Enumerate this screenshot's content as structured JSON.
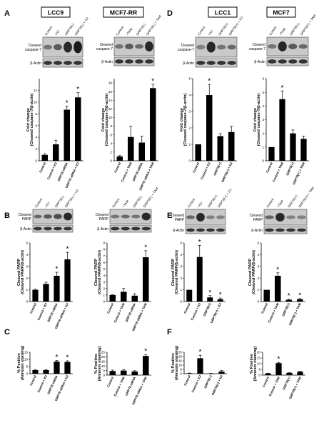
{
  "panel_letters": [
    "A",
    "B",
    "C",
    "D",
    "E",
    "F"
  ],
  "cell_lines": [
    "LCC9",
    "MCF7-RR",
    "LCC1",
    "MCF7"
  ],
  "blot_labels": {
    "caspase": "Cleaved caspase-7",
    "parp": "Cleaved PARP",
    "actin": "β-Actin"
  },
  "chart_data": [
    {
      "id": "A1",
      "type": "bar",
      "panel": "A",
      "cell": "LCC9",
      "ylabel_1": "Fold change",
      "ylabel_2": "(Cleaved caspase-7/β-actin)",
      "categories": [
        "Control",
        "Control + ICI",
        "GRP78 siRNA",
        "GRP78 siRNA + ICI"
      ],
      "values": [
        1.0,
        2.8,
        8.7,
        10.8
      ],
      "errors": [
        0.2,
        0.7,
        0.6,
        0.8
      ],
      "sig": [
        false,
        false,
        true,
        true
      ],
      "yticks": [
        0,
        2,
        4,
        6,
        8,
        10,
        12
      ],
      "ylim": [
        0,
        14
      ]
    },
    {
      "id": "A2",
      "type": "bar",
      "panel": "A",
      "cell": "MCF7-RR",
      "ylabel_1": "Fold change",
      "ylabel_2": "(Cleaved caspase-7/β-actin)",
      "categories": [
        "Control",
        "Control + TAM",
        "GRP78 siRNA",
        "GRP78 siRNA + TAM"
      ],
      "values": [
        1.0,
        5.5,
        4.2,
        16.8
      ],
      "errors": [
        0.2,
        2.5,
        1.5,
        0.9
      ],
      "sig": [
        false,
        false,
        false,
        true
      ],
      "yticks": [
        0,
        2,
        4,
        6,
        8,
        10,
        12,
        14,
        16,
        18
      ],
      "ylim": [
        0,
        19
      ]
    },
    {
      "id": "D1",
      "type": "bar",
      "panel": "D",
      "cell": "LCC1",
      "ylabel_1": "Fold change",
      "ylabel_2": "(Cleaved caspase-7/β-actin)",
      "categories": [
        "Control",
        "Control + ICI",
        "GRP78(+)",
        "GRP78(+) + ICI"
      ],
      "values": [
        1.0,
        4.0,
        1.5,
        1.75
      ],
      "errors": [
        0.0,
        0.65,
        0.15,
        0.35
      ],
      "sig": [
        false,
        true,
        false,
        false
      ],
      "yticks": [
        0,
        1,
        2,
        3,
        4,
        5
      ],
      "ylim": [
        0,
        5
      ]
    },
    {
      "id": "D2",
      "type": "bar",
      "panel": "D",
      "cell": "MCF7",
      "ylabel_1": "Fold change",
      "ylabel_2": "(Cleaved caspase-7/β-actin)",
      "categories": [
        "Control",
        "Control + TAM",
        "GRP78(+)",
        "GRP78(+) + TAM"
      ],
      "values": [
        1.0,
        4.5,
        2.0,
        1.6
      ],
      "errors": [
        0.0,
        0.6,
        0.25,
        0.2
      ],
      "sig": [
        false,
        true,
        false,
        false
      ],
      "yticks": [
        0,
        1,
        2,
        3,
        4,
        5,
        6
      ],
      "ylim": [
        0,
        6
      ]
    },
    {
      "id": "B1",
      "type": "bar",
      "panel": "B",
      "cell": "LCC9",
      "ylabel_1": "Cleaved PARP",
      "ylabel_2": "(Cleaved PARP/β-actin)",
      "categories": [
        "Control",
        "Control + ICI",
        "GRP78 siRNA",
        "GRP78 siRNA + ICI"
      ],
      "values": [
        1.0,
        1.5,
        2.2,
        3.6
      ],
      "errors": [
        0.05,
        0.15,
        0.3,
        0.6
      ],
      "sig": [
        false,
        false,
        true,
        true
      ],
      "yticks": [
        0,
        1,
        2,
        3,
        4,
        5
      ],
      "ylim": [
        0,
        5
      ]
    },
    {
      "id": "B2",
      "type": "bar",
      "panel": "B",
      "cell": "MCF7-RR",
      "ylabel_1": "Cleaved PARP",
      "ylabel_2": "(Cleaved PARP/β-actin)",
      "categories": [
        "Control",
        "Control + TAM",
        "GRP78 siRNA",
        "GRP78 siRNA + TAM"
      ],
      "values": [
        1.0,
        1.5,
        0.9,
        6.8
      ],
      "errors": [
        0.05,
        0.5,
        0.3,
        1.0
      ],
      "sig": [
        false,
        false,
        false,
        true
      ],
      "yticks": [
        0,
        1,
        2,
        3,
        4,
        5,
        6,
        7,
        8,
        9
      ],
      "ylim": [
        0,
        9
      ]
    },
    {
      "id": "E1",
      "type": "bar",
      "panel": "E",
      "cell": "LCC1",
      "ylabel_1": "Cleaved PARP",
      "ylabel_2": "(Cleaved PARP/β-actin)",
      "categories": [
        "Control",
        "Control + ICI",
        "GRP78(+)",
        "GRP78(+) + ICI"
      ],
      "values": [
        1.0,
        3.8,
        0.35,
        0.2
      ],
      "errors": [
        0.0,
        1.0,
        0.15,
        0.1
      ],
      "sig": [
        false,
        true,
        true,
        true
      ],
      "yticks": [
        0,
        1,
        2,
        3,
        4,
        5
      ],
      "ylim": [
        0,
        5
      ]
    },
    {
      "id": "E2",
      "type": "bar",
      "panel": "E",
      "cell": "MCF7",
      "ylabel_1": "Cleaved PARP",
      "ylabel_2": "(Cleaved PARP/β-actin)",
      "categories": [
        "Control",
        "Control + TAM",
        "GRP78(+)",
        "GRP78(+) + TAM"
      ],
      "values": [
        1.0,
        2.2,
        0.15,
        0.2
      ],
      "errors": [
        0.0,
        0.25,
        0.05,
        0.05
      ],
      "sig": [
        false,
        true,
        true,
        true
      ],
      "yticks": [
        0,
        1,
        2,
        3,
        4,
        5
      ],
      "ylim": [
        0,
        5
      ]
    },
    {
      "id": "C1",
      "type": "bar",
      "panel": "C",
      "cell": "LCC9",
      "ylabel_1": "% Positive",
      "ylabel_2": "(Annexin staining)",
      "categories": [
        "Control",
        "Control + ICI",
        "GRP78 siRNA",
        "GRP78 siRNA + ICI"
      ],
      "values": [
        2.5,
        2.5,
        8.5,
        8.2
      ],
      "errors": [
        0.4,
        0.4,
        0.7,
        0.8
      ],
      "sig": [
        false,
        false,
        true,
        true
      ],
      "yticks": [
        0,
        5,
        10,
        15
      ],
      "ylim": [
        0,
        15
      ]
    },
    {
      "id": "C2",
      "type": "bar",
      "panel": "C",
      "cell": "MCF7-RR",
      "ylabel_1": "% Positive",
      "ylabel_2": "(Annexin staining)",
      "categories": [
        "Control",
        "Control + TAM",
        "GRP78 siRNA",
        "GRP78 siRNA + TAM"
      ],
      "values": [
        4.5,
        5.0,
        4.0,
        21.0
      ],
      "errors": [
        1.0,
        1.0,
        0.8,
        1.5
      ],
      "sig": [
        false,
        false,
        false,
        true
      ],
      "yticks": [
        0,
        5,
        10,
        15,
        20,
        25
      ],
      "ylim": [
        0,
        25
      ]
    },
    {
      "id": "F1",
      "type": "bar",
      "panel": "F",
      "cell": "LCC1",
      "ylabel_1": "% Positive",
      "ylabel_2": "(Annexin staining)",
      "categories": [
        "Control",
        "Control + ICI",
        "GRP78(+)",
        "GRP78(+) + ICI"
      ],
      "values": [
        0.5,
        18.0,
        0.3,
        2.5
      ],
      "errors": [
        0.2,
        3.5,
        0.2,
        1.2
      ],
      "sig": [
        false,
        true,
        false,
        false
      ],
      "yticks": [
        0,
        5,
        10,
        15,
        20,
        25
      ],
      "ylim": [
        0,
        25
      ]
    },
    {
      "id": "F2",
      "type": "bar",
      "panel": "F",
      "cell": "MCF7",
      "ylabel_1": "% Positive",
      "ylabel_2": "(Annexin staining)",
      "categories": [
        "Control",
        "Control + TAM",
        "GRP78(+)",
        "GRP78(+) + TAM"
      ],
      "values": [
        1.5,
        10.5,
        2.0,
        3.0
      ],
      "errors": [
        0.2,
        0.6,
        0.2,
        0.3
      ],
      "sig": [
        false,
        true,
        false,
        false
      ],
      "yticks": [
        0,
        5,
        10,
        15,
        20
      ],
      "ylim": [
        0,
        20
      ]
    }
  ],
  "blot_lanes": {
    "LCC9": [
      "Control",
      "+ICI",
      "GRP78(-)",
      "GRP78(-) + ICI"
    ],
    "MCF7-RR": [
      "Control",
      "+TAM",
      "GRP78(-)",
      "GRP78(-) + TAM"
    ],
    "LCC1": [
      "Control",
      "+ICI",
      "GRP78(+)",
      "GRP78(+) + ICI"
    ],
    "MCF7": [
      "Control",
      "+TAM",
      "GRP78(+)",
      "GRP78(+) + TAM"
    ]
  },
  "significance_marker": "*"
}
